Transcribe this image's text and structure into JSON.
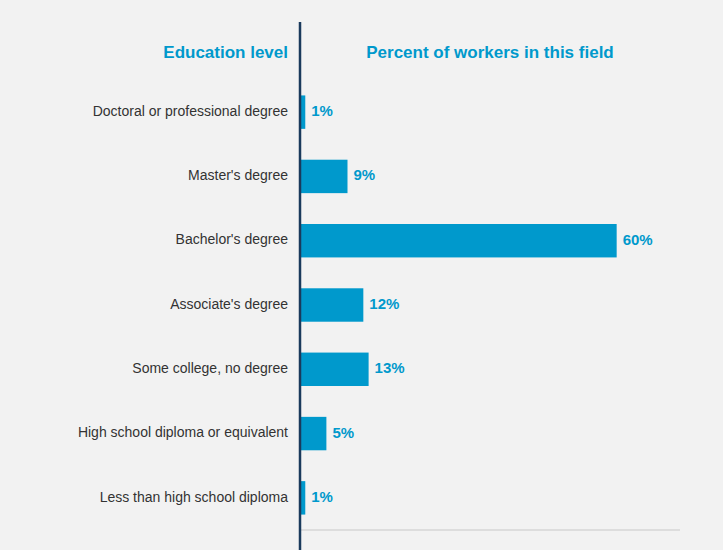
{
  "chart_data": {
    "type": "bar",
    "orientation": "horizontal",
    "x_label": "Percent of workers in this field",
    "y_label": "Education level",
    "categories": [
      "Doctoral or professional degree",
      "Master's degree",
      "Bachelor's degree",
      "Associate's degree",
      "Some college, no degree",
      "High school diploma or equivalent",
      "Less than high school diploma"
    ],
    "values": [
      1,
      9,
      60,
      12,
      13,
      5,
      1
    ],
    "value_labels": [
      "1%",
      "9%",
      "60%",
      "12%",
      "13%",
      "5%",
      "1%"
    ],
    "data_labels": true,
    "color": "#0099cc",
    "xlim": [
      0,
      72
    ],
    "grid": false,
    "tick_labels": "y"
  }
}
